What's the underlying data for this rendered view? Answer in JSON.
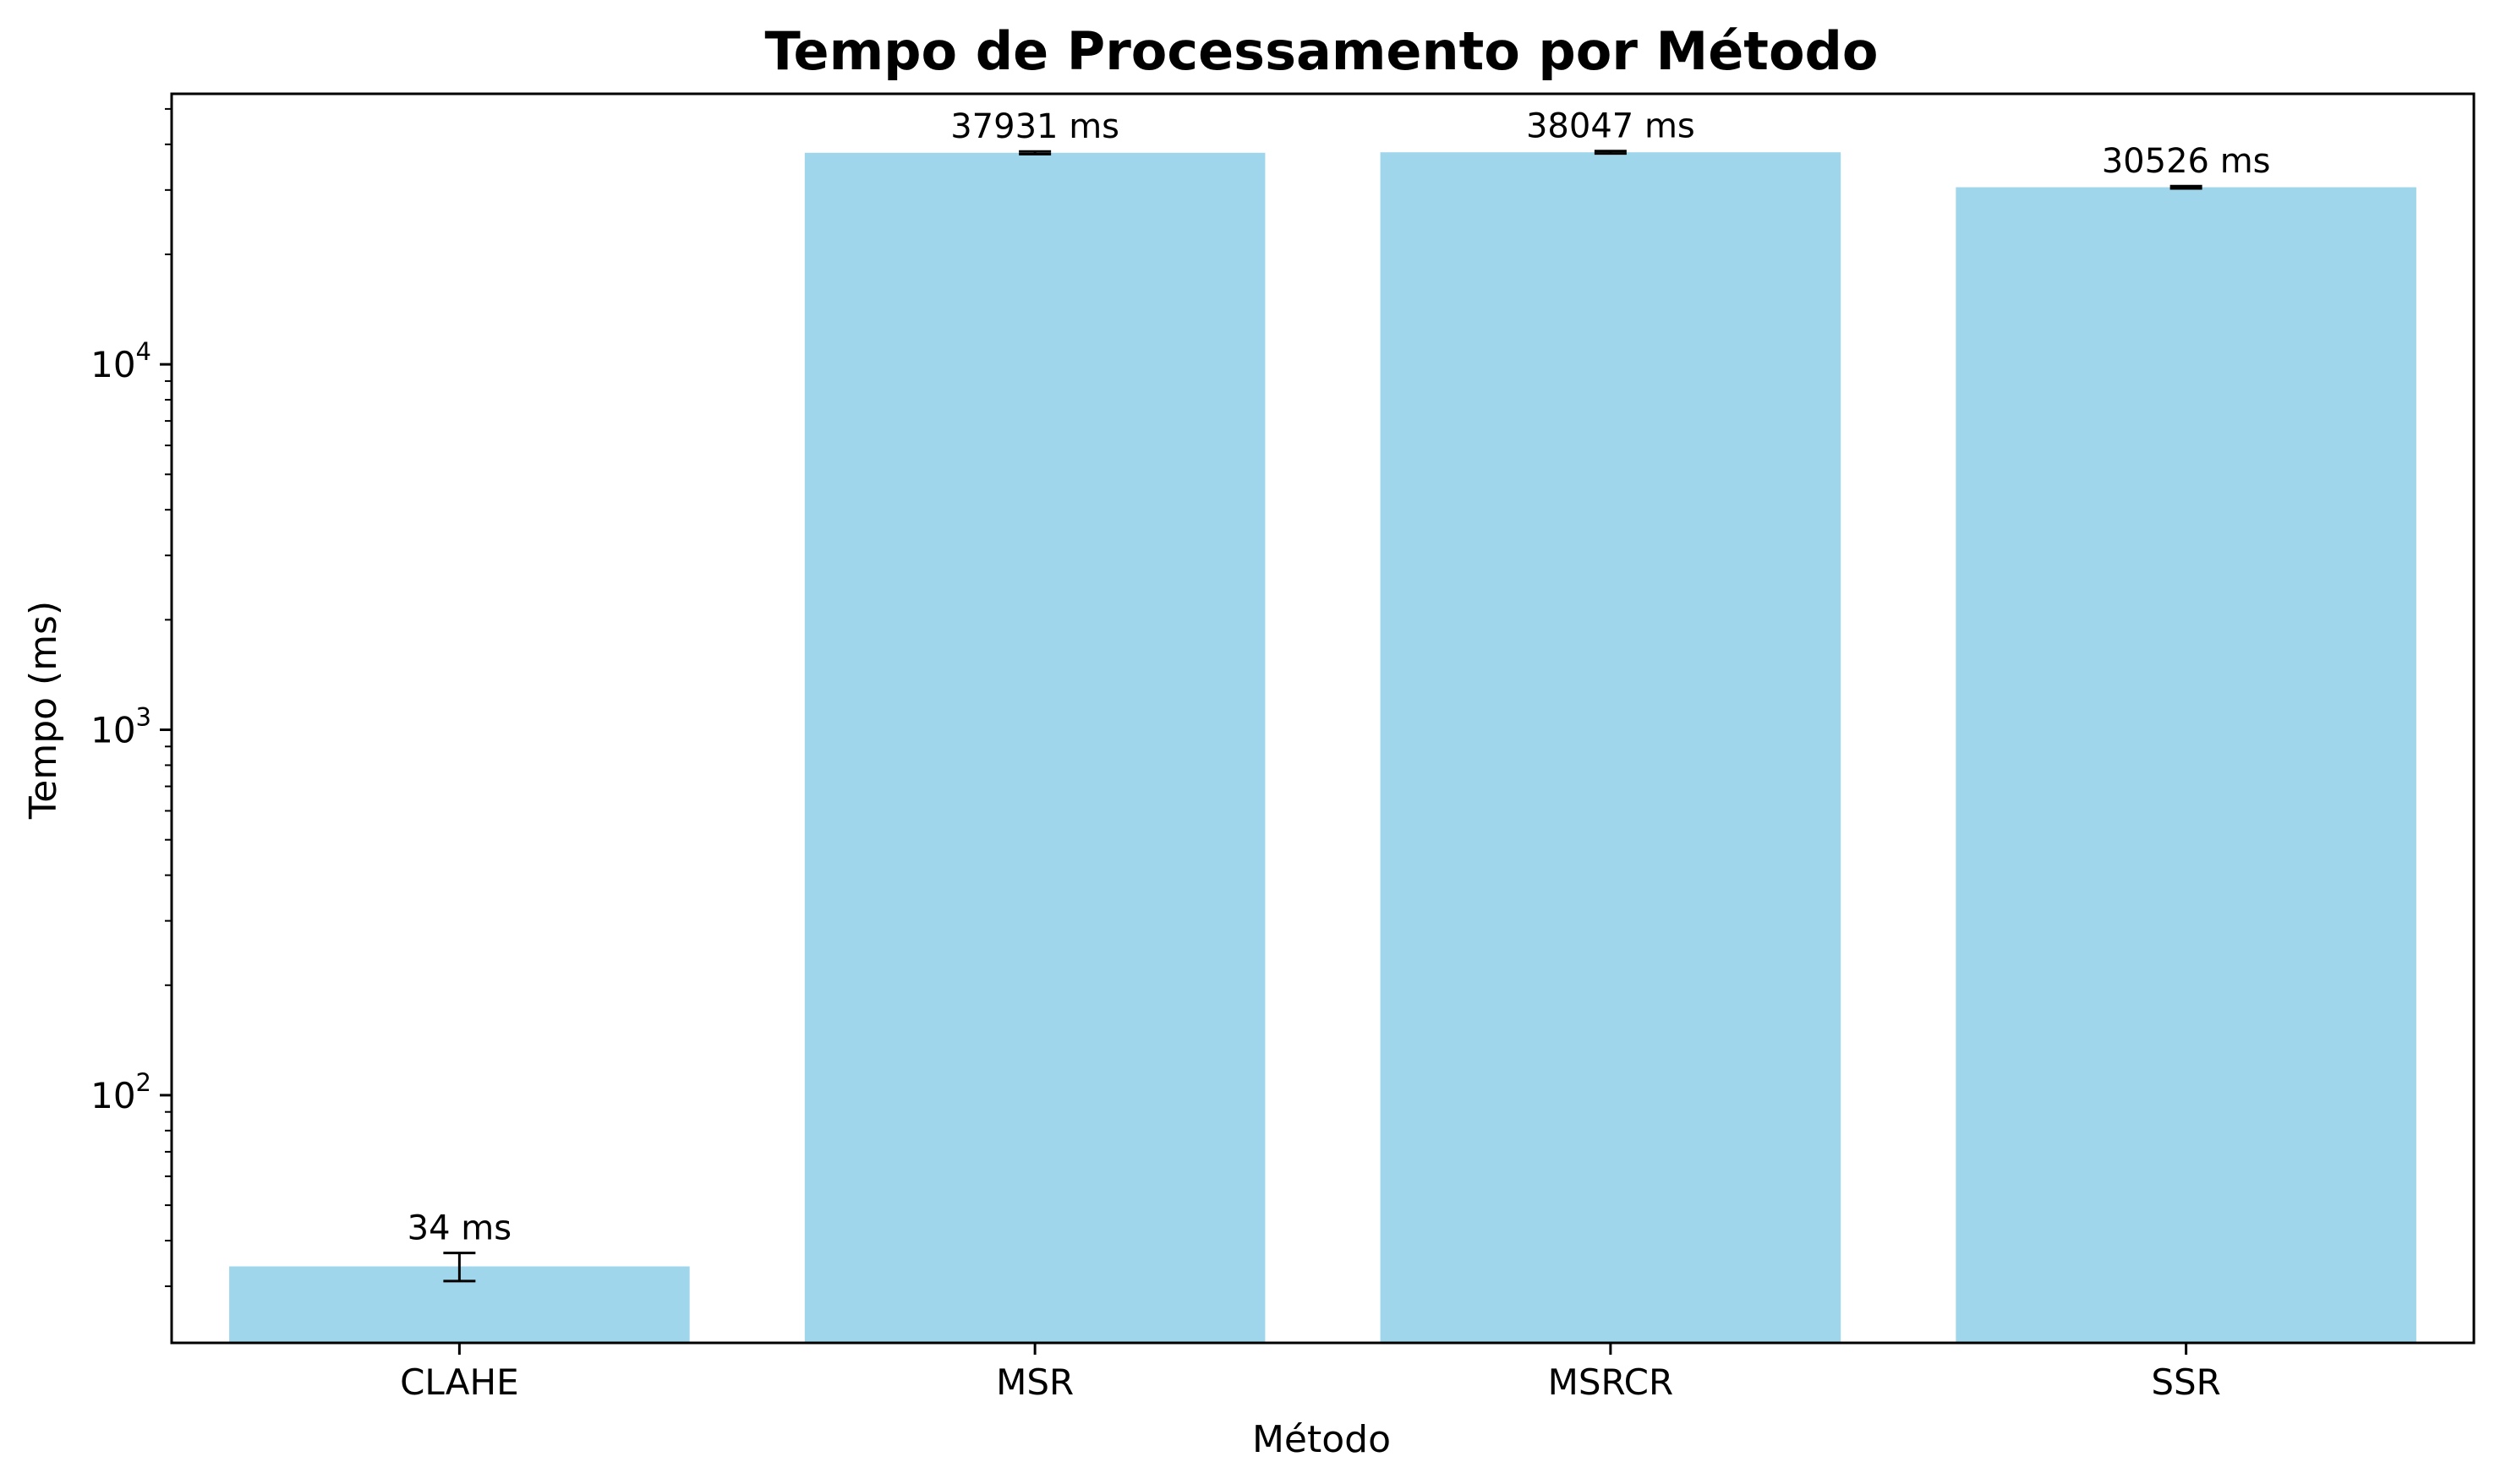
{
  "chart_data": {
    "type": "bar",
    "title": "Tempo de Processamento por Método",
    "xlabel": "Método",
    "ylabel": "Tempo (ms)",
    "y_scale": "log",
    "ylim": [
      21,
      55000
    ],
    "y_ticks": [
      {
        "value": 100,
        "base": "10",
        "exp": "2"
      },
      {
        "value": 1000,
        "base": "10",
        "exp": "3"
      },
      {
        "value": 10000,
        "base": "10",
        "exp": "4"
      }
    ],
    "categories": [
      "CLAHE",
      "MSR",
      "MSRCR",
      "SSR"
    ],
    "values": [
      34,
      37931,
      38047,
      30526
    ],
    "error_low": [
      31,
      37600,
      37750,
      30300
    ],
    "error_high": [
      37,
      38250,
      38350,
      30750
    ],
    "data_labels": [
      "34 ms",
      "37931 ms",
      "38047 ms",
      "30526 ms"
    ],
    "grid": false,
    "legend": "none",
    "bar_color": "#a0d6ec",
    "error_color": "#000000"
  }
}
